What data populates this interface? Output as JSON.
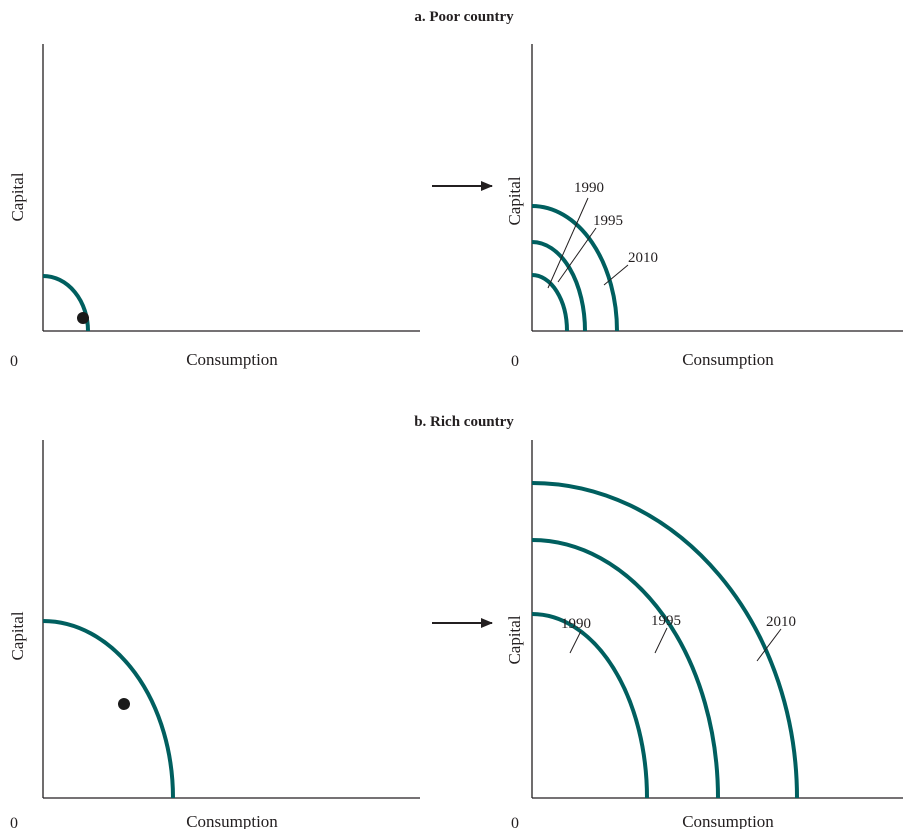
{
  "colors": {
    "frontier": "#005f5f",
    "axis": "#231f20",
    "point": "#1a1a1a",
    "background": "#ffffff"
  },
  "sections": [
    {
      "title": "a. Poor country",
      "left_panel": {
        "origin_label": "0",
        "x_label": "Consumption",
        "y_label": "Capital"
      },
      "right_panel": {
        "origin_label": "0",
        "x_label": "Consumption",
        "y_label": "Capital",
        "curve_labels": [
          "1990",
          "1995",
          "2010"
        ]
      }
    },
    {
      "title": "b. Rich country",
      "left_panel": {
        "origin_label": "0",
        "x_label": "Consumption",
        "y_label": "Capital"
      },
      "right_panel": {
        "origin_label": "0",
        "x_label": "Consumption",
        "y_label": "Capital",
        "curve_labels": [
          "1990",
          "1995",
          "2010"
        ]
      }
    }
  ],
  "arrow_icon": "right-arrow-icon"
}
